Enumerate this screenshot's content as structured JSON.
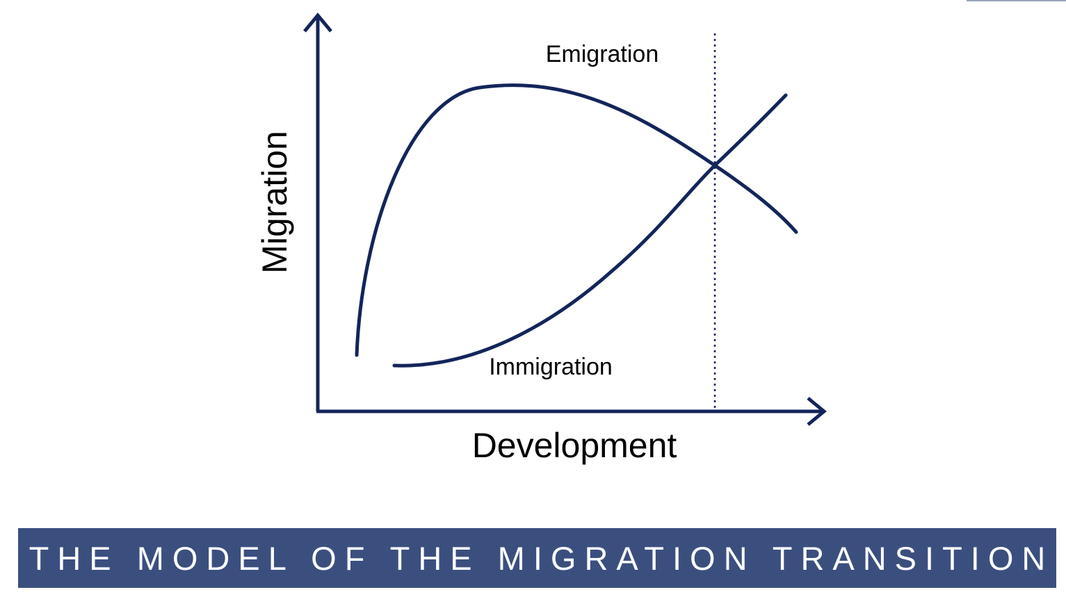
{
  "diagram": {
    "y_axis_label": "Migration",
    "x_axis_label": "Development",
    "curves": [
      {
        "label": "Emigration"
      },
      {
        "label": "Immigration"
      }
    ],
    "line_color": "#13255a"
  },
  "banner": {
    "title": "THE MODEL OF THE MIGRATION TRANSITION",
    "background_color": "#3b4f7f",
    "text_color": "#ffffff"
  }
}
